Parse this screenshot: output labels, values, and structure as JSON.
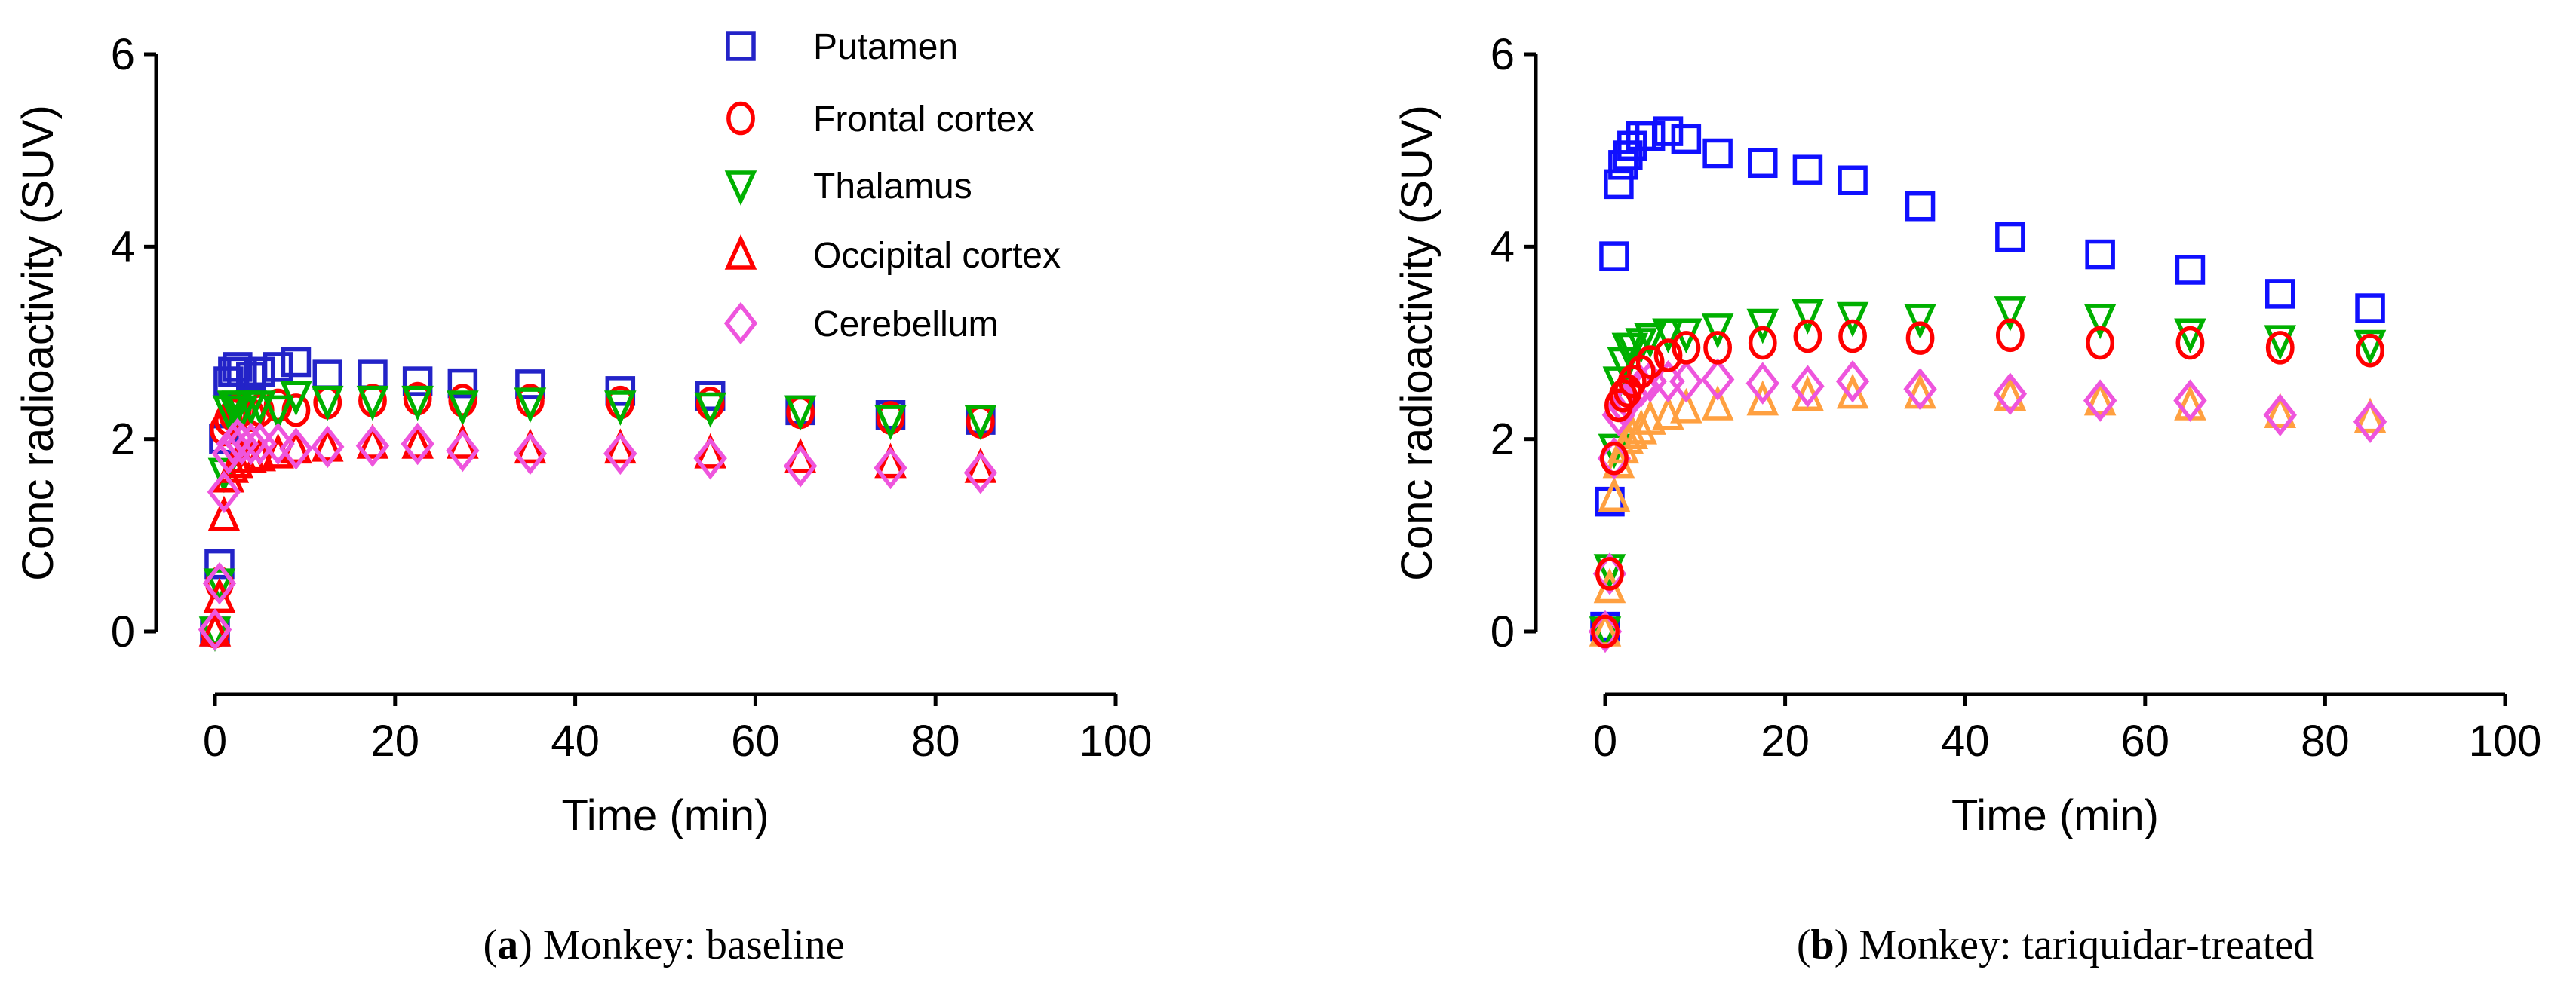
{
  "chart_data": [
    {
      "type": "scatter",
      "caption_letter": "a",
      "caption_text": "Monkey: baseline",
      "xlabel": "Time (min)",
      "ylabel": "Conc radioactivity (SUV)",
      "xlim": [
        0,
        100
      ],
      "ylim": [
        0,
        6
      ],
      "xticks": [
        0,
        20,
        40,
        60,
        80,
        100
      ],
      "yticks": [
        0,
        2,
        4,
        6
      ],
      "grid": false,
      "legend_position": "top-right",
      "x": [
        0,
        0.5,
        1,
        1.5,
        2,
        2.5,
        3,
        4,
        5,
        7,
        9,
        12.5,
        17.5,
        22.5,
        27.5,
        35,
        45,
        55,
        65,
        75,
        85
      ],
      "series": [
        {
          "name": "Putamen",
          "marker": "square",
          "color": "#2323c8",
          "values": [
            0.0,
            0.7,
            2.0,
            2.6,
            2.7,
            2.75,
            2.7,
            2.65,
            2.7,
            2.75,
            2.8,
            2.67,
            2.67,
            2.6,
            2.58,
            2.57,
            2.5,
            2.45,
            2.3,
            2.25,
            2.2
          ]
        },
        {
          "name": "Frontal cortex",
          "marker": "circle",
          "color": "#ff0000",
          "values": [
            0.0,
            0.5,
            2.1,
            2.2,
            2.25,
            2.3,
            2.3,
            2.25,
            2.3,
            2.35,
            2.3,
            2.38,
            2.4,
            2.42,
            2.4,
            2.4,
            2.38,
            2.37,
            2.28,
            2.22,
            2.18
          ]
        },
        {
          "name": "Thalamus",
          "marker": "triangle-down",
          "color": "#00b000",
          "values": [
            0.0,
            0.5,
            1.65,
            2.3,
            2.35,
            2.35,
            2.3,
            2.35,
            2.35,
            2.3,
            2.45,
            2.4,
            2.4,
            2.4,
            2.35,
            2.38,
            2.35,
            2.33,
            2.3,
            2.2,
            2.2
          ]
        },
        {
          "name": "Occipital cortex",
          "marker": "triangle-up",
          "color": "#ff0000",
          "values": [
            0.0,
            0.35,
            1.2,
            1.6,
            1.7,
            1.75,
            1.8,
            1.8,
            1.82,
            1.85,
            1.9,
            1.92,
            1.95,
            1.95,
            1.95,
            1.9,
            1.9,
            1.85,
            1.8,
            1.75,
            1.7
          ]
        },
        {
          "name": "Cerebellum",
          "marker": "diamond",
          "color": "#ee55dd",
          "values": [
            0.02,
            0.5,
            1.45,
            1.85,
            1.95,
            2.0,
            1.95,
            1.95,
            1.95,
            1.95,
            1.9,
            1.92,
            1.93,
            1.95,
            1.88,
            1.85,
            1.85,
            1.8,
            1.72,
            1.7,
            1.65
          ]
        }
      ]
    },
    {
      "type": "scatter",
      "caption_letter": "b",
      "caption_text": "Monkey: tariquidar-treated",
      "xlabel": "Time (min)",
      "ylabel": "Conc radioactivity (SUV)",
      "xlim": [
        0,
        100
      ],
      "ylim": [
        0,
        6
      ],
      "xticks": [
        0,
        20,
        40,
        60,
        80,
        100
      ],
      "yticks": [
        0,
        2,
        4,
        6
      ],
      "grid": false,
      "x": [
        0,
        0.5,
        1,
        1.5,
        2,
        2.5,
        3,
        4,
        5,
        7,
        9,
        12.5,
        17.5,
        22.5,
        27.5,
        35,
        45,
        55,
        65,
        75,
        85
      ],
      "series": [
        {
          "name": "Putamen",
          "marker": "square",
          "color": "#1010ff",
          "values": [
            0.05,
            1.35,
            3.9,
            4.65,
            4.85,
            4.95,
            5.05,
            5.15,
            5.15,
            5.2,
            5.12,
            4.97,
            4.87,
            4.8,
            4.69,
            4.42,
            4.1,
            3.92,
            3.76,
            3.51,
            3.36
          ]
        },
        {
          "name": "Thalamus",
          "marker": "triangle-down",
          "color": "#00b000",
          "values": [
            0.0,
            0.65,
            1.9,
            2.6,
            2.8,
            2.95,
            2.95,
            3.0,
            3.05,
            3.1,
            3.1,
            3.15,
            3.2,
            3.3,
            3.27,
            3.25,
            3.33,
            3.25,
            3.1,
            3.03,
            2.98
          ]
        },
        {
          "name": "Occipital cortex",
          "marker": "triangle-up",
          "color": "#ffa040",
          "values": [
            0.0,
            0.45,
            1.4,
            1.75,
            1.9,
            2.0,
            2.05,
            2.1,
            2.2,
            2.25,
            2.32,
            2.35,
            2.4,
            2.45,
            2.47,
            2.47,
            2.45,
            2.4,
            2.35,
            2.27,
            2.22
          ]
        },
        {
          "name": "Cerebellum",
          "marker": "diamond",
          "color": "#ee55dd",
          "values": [
            0.0,
            0.6,
            1.8,
            2.25,
            2.35,
            2.4,
            2.45,
            2.55,
            2.6,
            2.6,
            2.6,
            2.62,
            2.58,
            2.55,
            2.6,
            2.52,
            2.47,
            2.4,
            2.4,
            2.25,
            2.18
          ]
        },
        {
          "name": "Frontal cortex",
          "marker": "circle",
          "color": "#ff0000",
          "values": [
            0.0,
            0.6,
            1.8,
            2.35,
            2.45,
            2.5,
            2.6,
            2.7,
            2.8,
            2.87,
            2.95,
            2.95,
            3.0,
            3.07,
            3.07,
            3.05,
            3.08,
            3.0,
            3.0,
            2.95,
            2.92
          ]
        }
      ]
    }
  ],
  "legend": [
    {
      "label": "Putamen",
      "marker": "square",
      "color": "#2323c8"
    },
    {
      "label": "Frontal cortex",
      "marker": "circle",
      "color": "#ff0000"
    },
    {
      "label": "Thalamus",
      "marker": "triangle-down",
      "color": "#00b000"
    },
    {
      "label": "Occipital cortex",
      "marker": "triangle-up",
      "color": "#ff0000"
    },
    {
      "label": "Cerebellum",
      "marker": "diamond",
      "color": "#ee55dd"
    }
  ]
}
